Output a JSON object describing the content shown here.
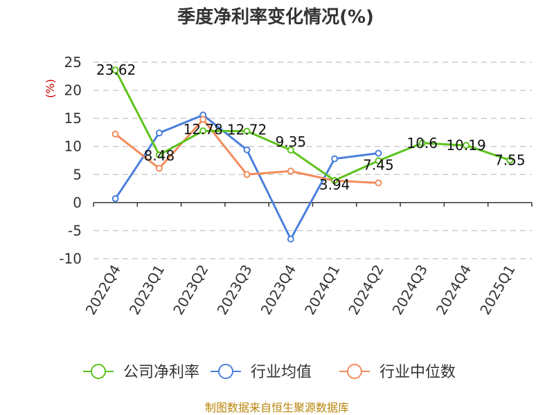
{
  "chart_data": {
    "type": "line",
    "title": "季度净利率变化情况(%)",
    "ylabel": "(%)",
    "xlabel": "",
    "ylim": [
      -10,
      25
    ],
    "yticks": [
      25,
      20,
      15,
      10,
      5,
      0,
      -5,
      -10
    ],
    "grid": true,
    "legend_position": "bottom",
    "categories": [
      "2022Q4",
      "2023Q1",
      "2023Q2",
      "2023Q3",
      "2023Q4",
      "2024Q1",
      "2024Q2",
      "2024Q3",
      "2024Q4",
      "2025Q1"
    ],
    "series": [
      {
        "name": "公司净利率",
        "color": "#5cc21c",
        "values": [
          23.62,
          8.48,
          12.78,
          12.72,
          9.35,
          3.94,
          7.45,
          10.6,
          10.19,
          7.55
        ],
        "labels": [
          "23.62",
          "8.48",
          "12.78",
          "12.72",
          "9.35",
          "3.94",
          "7.45",
          "10.6",
          "10.19",
          "7.55"
        ]
      },
      {
        "name": "行业均值",
        "color": "#4a7fdc",
        "values": [
          0.7,
          12.4,
          15.6,
          9.4,
          -6.5,
          7.8,
          8.8,
          null,
          null,
          null
        ]
      },
      {
        "name": "行业中位数",
        "color": "#f28b5b",
        "values": [
          12.2,
          6.1,
          14.8,
          5.0,
          5.6,
          3.9,
          3.5,
          null,
          null,
          null
        ]
      }
    ]
  },
  "footer": "制图数据来自恒生聚源数据库"
}
